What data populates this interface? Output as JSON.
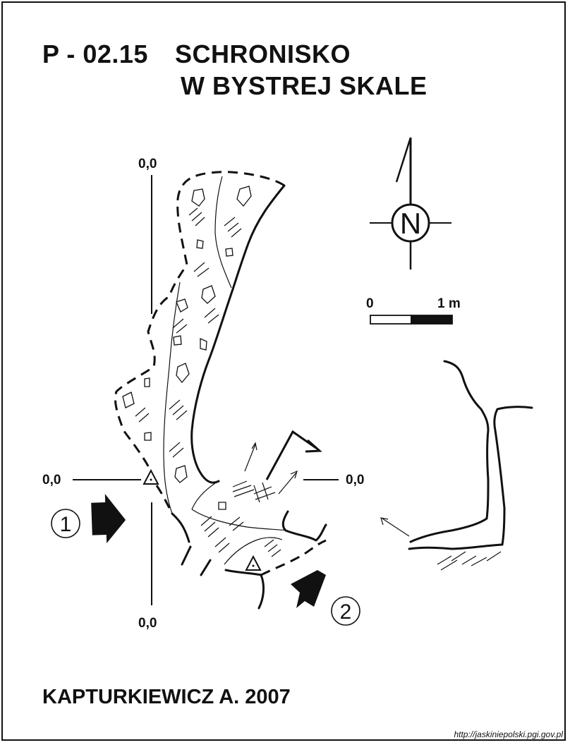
{
  "title": {
    "code": "P - 02.15",
    "line1": "SCHRONISKO",
    "line2": "W BYSTREJ SKALE"
  },
  "compass": {
    "label": "N"
  },
  "scale_bar": {
    "start_label": "0",
    "end_label": "1 m"
  },
  "reference_axes": {
    "top": "0,0",
    "left": "0,0",
    "right": "0,0",
    "bottom": "0,0"
  },
  "cross_sections": [
    {
      "label": "1"
    },
    {
      "label": "2"
    }
  ],
  "author": "KAPTURKIEWICZ A. 2007",
  "source_url": "http://jaskiniepolski.pgi.gov.pl"
}
